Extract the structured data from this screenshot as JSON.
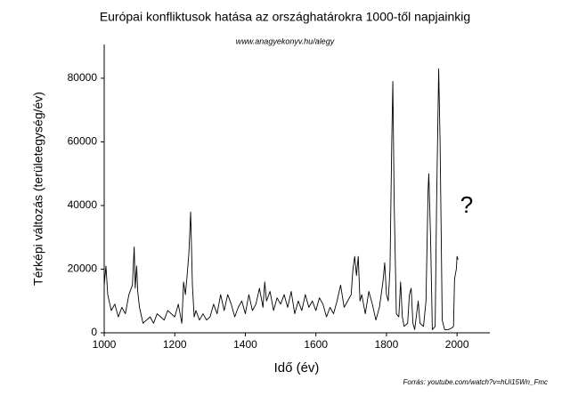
{
  "chart_data": {
    "type": "line",
    "title": "Európai konfliktusok hatása az országhatárokra 1000-től napjainkig",
    "subtitle": "www.anagyekonyv.hu/alegy",
    "x_label": "Idő (év)",
    "y_label": "Térképi változás (területegység/év)",
    "source": "Forrás: youtube.com/watch?v=hUi15Wn_Fmc",
    "annotation": "?",
    "color": "#000000",
    "xlim": [
      1000,
      2093
    ],
    "ylim": [
      0,
      90600
    ],
    "xticks": [
      1000,
      1200,
      1400,
      1600,
      1800,
      2000
    ],
    "yticks": [
      0,
      20000,
      40000,
      60000,
      80000
    ],
    "x": [
      1000,
      1005,
      1010,
      1020,
      1030,
      1040,
      1050,
      1060,
      1070,
      1080,
      1085,
      1088,
      1092,
      1095,
      1100,
      1110,
      1120,
      1130,
      1140,
      1150,
      1160,
      1170,
      1180,
      1190,
      1200,
      1210,
      1220,
      1225,
      1230,
      1235,
      1240,
      1245,
      1250,
      1255,
      1260,
      1270,
      1280,
      1290,
      1300,
      1310,
      1320,
      1330,
      1340,
      1350,
      1360,
      1370,
      1380,
      1390,
      1400,
      1410,
      1420,
      1430,
      1440,
      1450,
      1455,
      1460,
      1470,
      1480,
      1490,
      1500,
      1510,
      1520,
      1530,
      1540,
      1550,
      1560,
      1570,
      1580,
      1590,
      1600,
      1610,
      1620,
      1630,
      1640,
      1650,
      1660,
      1670,
      1680,
      1690,
      1700,
      1705,
      1710,
      1715,
      1720,
      1725,
      1730,
      1740,
      1750,
      1760,
      1770,
      1780,
      1790,
      1795,
      1800,
      1805,
      1810,
      1815,
      1818,
      1822,
      1828,
      1835,
      1840,
      1845,
      1850,
      1860,
      1865,
      1870,
      1875,
      1880,
      1890,
      1895,
      1905,
      1912,
      1918,
      1920,
      1925,
      1930,
      1938,
      1942,
      1948,
      1952,
      1958,
      1965,
      1975,
      1985,
      1990,
      1993,
      1998,
      2000,
      2003
    ],
    "values": [
      15000,
      21000,
      12000,
      7000,
      9000,
      5000,
      8000,
      6000,
      12000,
      15000,
      27000,
      14000,
      21000,
      13000,
      8000,
      3000,
      4000,
      5000,
      3000,
      6000,
      5000,
      4000,
      7000,
      6000,
      5000,
      9000,
      3000,
      16000,
      12000,
      18000,
      25000,
      38000,
      15000,
      5000,
      7000,
      4000,
      6000,
      4000,
      5000,
      9000,
      6000,
      12000,
      7000,
      12000,
      9000,
      5000,
      8000,
      10000,
      6000,
      12000,
      7000,
      9000,
      14000,
      8000,
      16000,
      10000,
      13000,
      7000,
      11000,
      9000,
      12000,
      8000,
      13000,
      6000,
      10000,
      7000,
      12000,
      8000,
      10000,
      7000,
      11000,
      9000,
      5000,
      8000,
      6000,
      10000,
      15000,
      8000,
      10000,
      12000,
      20000,
      24000,
      18000,
      24000,
      10000,
      12000,
      6000,
      13000,
      9000,
      4000,
      8000,
      16000,
      22000,
      12000,
      10000,
      20000,
      60000,
      79000,
      40000,
      6000,
      5000,
      16000,
      5000,
      2000,
      3000,
      12000,
      14000,
      3000,
      1000,
      10000,
      3000,
      2000,
      10000,
      45000,
      50000,
      30000,
      1000,
      2000,
      40000,
      83000,
      60000,
      4000,
      1000,
      1000,
      1500,
      2000,
      17000,
      20000,
      24000,
      23000
    ]
  }
}
